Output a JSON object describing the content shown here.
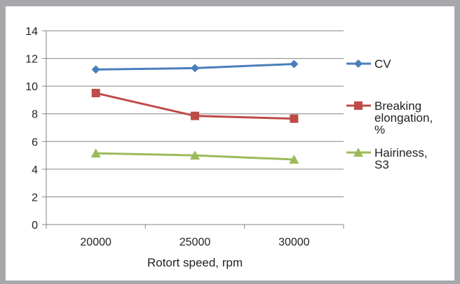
{
  "chart_data": {
    "type": "line",
    "categories": [
      "20000",
      "25000",
      "30000"
    ],
    "xlabel": "Rotort speed, rpm",
    "ylabel": "",
    "ylim": [
      0,
      14
    ],
    "yticks": [
      "0",
      "2",
      "4",
      "6",
      "8",
      "10",
      "12",
      "14"
    ],
    "grid": true,
    "legend": "right",
    "series": [
      {
        "name": "CV",
        "label_lines": [
          "CV"
        ],
        "color": "#4a7ebb",
        "marker": "diamond",
        "values": [
          11.2,
          11.3,
          11.6
        ]
      },
      {
        "name": "Breaking elongation, %",
        "label_lines": [
          "Breaking",
          "elongation,",
          "%"
        ],
        "color": "#be4b48",
        "marker": "square",
        "values": [
          9.5,
          7.85,
          7.65
        ]
      },
      {
        "name": "Hairiness, S3",
        "label_lines": [
          "Hairiness,",
          "S3"
        ],
        "color": "#9bbb59",
        "marker": "triangle",
        "values": [
          5.15,
          5.0,
          4.7
        ]
      }
    ]
  }
}
